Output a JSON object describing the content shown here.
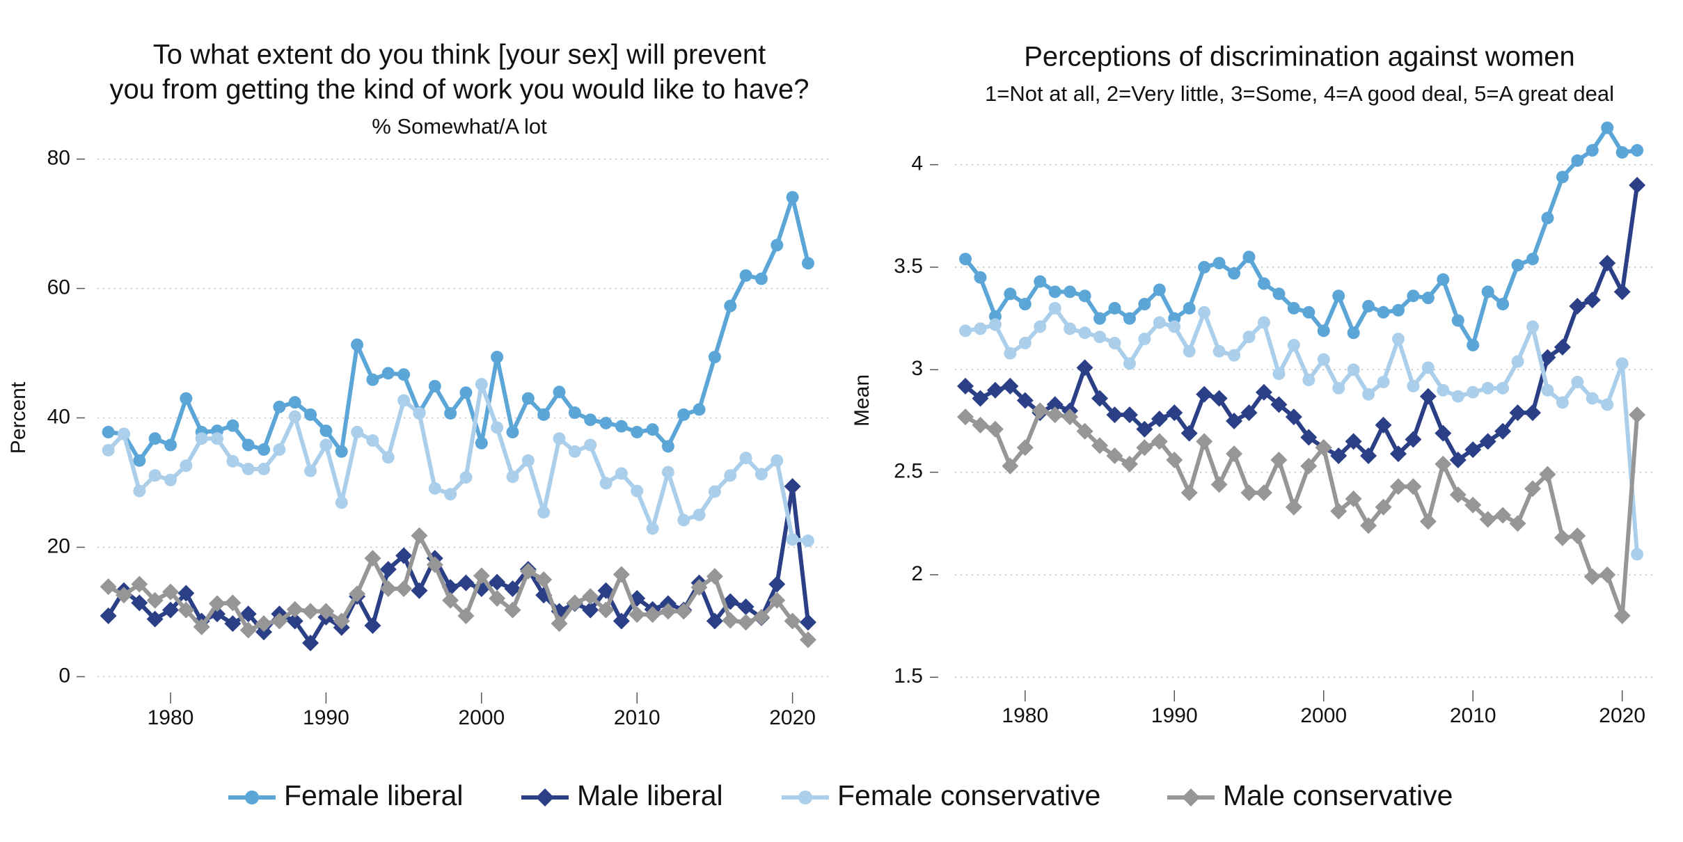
{
  "chart_data": [
    {
      "type": "line",
      "title": [
        "To what extent do you think [your sex] will prevent",
        "you from getting the kind of work you would like to have?"
      ],
      "subtitle": "% Somewhat/A lot",
      "y_label": "Percent",
      "x": [
        1976,
        1977,
        1978,
        1979,
        1980,
        1981,
        1982,
        1983,
        1984,
        1985,
        1986,
        1987,
        1988,
        1989,
        1990,
        1991,
        1992,
        1993,
        1994,
        1995,
        1996,
        1997,
        1998,
        1999,
        2000,
        2001,
        2002,
        2003,
        2004,
        2005,
        2006,
        2007,
        2008,
        2009,
        2010,
        2011,
        2012,
        2013,
        2014,
        2015,
        2016,
        2017,
        2018,
        2019,
        2020,
        2021
      ],
      "xlim": [
        1975.3,
        2022.3
      ],
      "xticks": [
        1980,
        1990,
        2000,
        2010,
        2020
      ],
      "ylim": [
        -2,
        82
      ],
      "yticks": [
        0,
        20,
        40,
        60,
        80
      ],
      "grid": true,
      "series": [
        {
          "name": "Female liberal",
          "color": "#5ba6d7",
          "marker": "circle",
          "values": [
            37.8,
            37.5,
            33.4,
            36.8,
            35.8,
            43.0,
            37.8,
            38.0,
            38.8,
            35.8,
            35.1,
            41.7,
            42.4,
            40.5,
            38.0,
            34.8,
            51.3,
            45.9,
            46.9,
            46.7,
            40.8,
            44.9,
            40.7,
            43.9,
            36.1,
            49.4,
            37.8,
            43.0,
            40.5,
            44.0,
            40.8,
            39.7,
            39.2,
            38.7,
            37.8,
            38.2,
            35.6,
            40.5,
            41.3,
            49.4,
            57.3,
            62.0,
            61.5,
            66.7,
            74.1,
            63.9
          ]
        },
        {
          "name": "Male liberal",
          "color": "#2b3f87",
          "marker": "diamond",
          "values": [
            9.4,
            13.3,
            11.4,
            8.9,
            10.3,
            12.9,
            8.6,
            9.7,
            8.2,
            9.7,
            6.9,
            9.7,
            8.6,
            5.2,
            9.2,
            7.6,
            12.4,
            7.9,
            16.6,
            18.7,
            13.3,
            18.3,
            13.8,
            14.5,
            13.6,
            14.6,
            13.6,
            16.6,
            12.6,
            10.1,
            11.3,
            10.3,
            13.3,
            8.6,
            12.1,
            10.4,
            11.3,
            10.3,
            14.5,
            8.6,
            11.6,
            10.8,
            9.1,
            14.3,
            29.4,
            8.4
          ]
        },
        {
          "name": "Female conservative",
          "color": "#abcfea",
          "marker": "circle",
          "values": [
            35.0,
            37.5,
            28.7,
            31.1,
            30.4,
            32.6,
            36.8,
            36.8,
            33.3,
            32.1,
            32.1,
            35.1,
            40.2,
            31.8,
            35.8,
            26.9,
            37.8,
            36.5,
            33.9,
            42.7,
            40.7,
            29.1,
            28.2,
            30.8,
            45.2,
            38.5,
            30.9,
            33.4,
            25.4,
            36.8,
            34.8,
            35.8,
            29.9,
            31.4,
            28.7,
            22.9,
            31.6,
            24.2,
            25.0,
            28.6,
            31.1,
            33.8,
            31.3,
            33.4,
            21.2,
            21.0
          ]
        },
        {
          "name": "Male conservative",
          "color": "#969696",
          "marker": "diamond",
          "values": [
            13.9,
            12.6,
            14.3,
            11.8,
            13.1,
            10.3,
            7.7,
            11.3,
            11.4,
            7.2,
            8.2,
            8.6,
            10.4,
            10.1,
            10.1,
            8.6,
            12.8,
            18.3,
            13.6,
            13.6,
            21.8,
            17.3,
            11.8,
            9.4,
            15.6,
            12.1,
            10.3,
            16.3,
            15.0,
            8.2,
            11.4,
            12.4,
            10.3,
            15.8,
            9.6,
            9.6,
            10.1,
            10.1,
            13.8,
            15.5,
            8.7,
            8.4,
            9.2,
            11.8,
            8.6,
            5.7
          ]
        }
      ]
    },
    {
      "type": "line",
      "title": [
        "Perceptions of discrimination against women"
      ],
      "subtitle": "1=Not at all, 2=Very little, 3=Some, 4=A good deal, 5=A great deal",
      "y_label": "Mean",
      "x": [
        1976,
        1977,
        1978,
        1979,
        1980,
        1981,
        1982,
        1983,
        1984,
        1985,
        1986,
        1987,
        1988,
        1989,
        1990,
        1991,
        1992,
        1993,
        1994,
        1995,
        1996,
        1997,
        1998,
        1999,
        2000,
        2001,
        2002,
        2003,
        2004,
        2005,
        2006,
        2007,
        2008,
        2009,
        2010,
        2011,
        2012,
        2013,
        2014,
        2015,
        2016,
        2017,
        2018,
        2019,
        2020,
        2021
      ],
      "xlim": [
        1975.3,
        2022.3
      ],
      "xticks": [
        1980,
        1990,
        2000,
        2010,
        2020
      ],
      "ylim": [
        1.45,
        4.25
      ],
      "yticks": [
        1.5,
        2,
        2.5,
        3,
        3.5,
        4
      ],
      "grid": true,
      "series": [
        {
          "name": "Female liberal",
          "color": "#5ba6d7",
          "marker": "circle",
          "values": [
            3.54,
            3.45,
            3.26,
            3.37,
            3.32,
            3.43,
            3.38,
            3.38,
            3.36,
            3.25,
            3.3,
            3.25,
            3.32,
            3.39,
            3.25,
            3.3,
            3.5,
            3.52,
            3.47,
            3.55,
            3.42,
            3.37,
            3.3,
            3.28,
            3.19,
            3.36,
            3.18,
            3.31,
            3.28,
            3.29,
            3.36,
            3.35,
            3.44,
            3.24,
            3.12,
            3.38,
            3.32,
            3.51,
            3.54,
            3.74,
            3.94,
            4.02,
            4.07,
            4.18,
            4.06,
            4.07
          ]
        },
        {
          "name": "Male liberal",
          "color": "#2b3f87",
          "marker": "diamond",
          "values": [
            2.92,
            2.86,
            2.9,
            2.92,
            2.85,
            2.79,
            2.83,
            2.8,
            3.01,
            2.86,
            2.78,
            2.78,
            2.71,
            2.76,
            2.79,
            2.69,
            2.88,
            2.86,
            2.75,
            2.79,
            2.89,
            2.83,
            2.77,
            2.67,
            2.62,
            2.58,
            2.65,
            2.58,
            2.73,
            2.59,
            2.66,
            2.87,
            2.69,
            2.56,
            2.61,
            2.65,
            2.7,
            2.79,
            2.79,
            3.06,
            3.11,
            3.31,
            3.34,
            3.52,
            3.38,
            3.9
          ]
        },
        {
          "name": "Female conservative",
          "color": "#abcfea",
          "marker": "circle",
          "values": [
            3.19,
            3.2,
            3.22,
            3.08,
            3.13,
            3.21,
            3.3,
            3.2,
            3.18,
            3.16,
            3.13,
            3.03,
            3.15,
            3.23,
            3.21,
            3.09,
            3.28,
            3.09,
            3.07,
            3.16,
            3.23,
            2.98,
            3.12,
            2.95,
            3.05,
            2.91,
            3.0,
            2.88,
            2.94,
            3.15,
            2.92,
            3.01,
            2.9,
            2.87,
            2.89,
            2.91,
            2.91,
            3.04,
            3.21,
            2.9,
            2.84,
            2.94,
            2.86,
            2.83,
            3.03,
            2.1
          ]
        },
        {
          "name": "Male conservative",
          "color": "#969696",
          "marker": "diamond",
          "values": [
            2.77,
            2.73,
            2.71,
            2.53,
            2.62,
            2.8,
            2.78,
            2.77,
            2.7,
            2.63,
            2.58,
            2.54,
            2.62,
            2.65,
            2.56,
            2.4,
            2.65,
            2.44,
            2.59,
            2.4,
            2.4,
            2.56,
            2.33,
            2.53,
            2.62,
            2.31,
            2.37,
            2.24,
            2.33,
            2.43,
            2.43,
            2.26,
            2.54,
            2.39,
            2.34,
            2.27,
            2.29,
            2.25,
            2.42,
            2.49,
            2.18,
            2.19,
            1.99,
            2.0,
            1.8,
            2.78
          ]
        }
      ]
    }
  ]
}
